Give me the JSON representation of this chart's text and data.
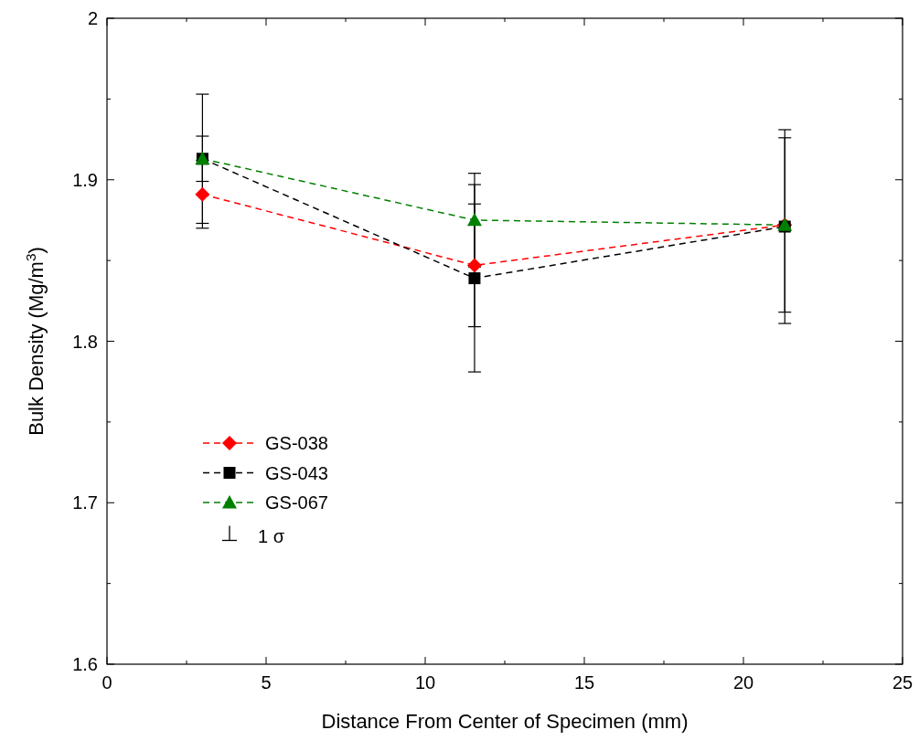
{
  "chart_data": {
    "type": "line",
    "xlabel": "Distance From Center of Specimen (mm)",
    "ylabel": "Bulk Density (Mg/m$^{3}$)",
    "x": [
      3.0,
      11.55,
      21.3
    ],
    "xlim": [
      0,
      25
    ],
    "xticks": [
      0,
      {
        "value": 2.5,
        "label": null
      },
      5,
      {
        "value": 7.5,
        "label": null
      },
      10,
      {
        "value": 12.5,
        "label": null
      },
      15,
      {
        "value": 17.5,
        "label": null
      },
      20,
      {
        "value": 22.5,
        "label": null
      },
      25
    ],
    "ylim": [
      1.6,
      2.0
    ],
    "yticks": [
      1.6,
      {
        "value": 1.65,
        "label": null
      },
      1.7,
      {
        "value": 1.75,
        "label": null
      },
      1.8,
      {
        "value": 1.85,
        "label": null
      },
      1.9,
      {
        "value": 1.95,
        "label": null
      },
      2.0
    ],
    "line_style": "dashed",
    "grid": false,
    "legend": "left",
    "series": [
      {
        "name": "GS-038",
        "color": "#ff0000",
        "marker": "diamond",
        "values": [
          1.891,
          1.847,
          1.872
        ],
        "errors": [
          0.021,
          0.038,
          0.054
        ]
      },
      {
        "name": "GS-043",
        "color": "#000000",
        "marker": "square",
        "values": [
          1.913,
          1.839,
          1.871
        ],
        "errors": [
          0.04,
          0.058,
          0.06
        ]
      },
      {
        "name": "GS-067",
        "color": "#008000",
        "marker": "triangle",
        "values": [
          1.913,
          1.875,
          1.872
        ],
        "errors": [
          0.014,
          0.029,
          null
        ]
      }
    ],
    "annotations": [
      "1 σ"
    ]
  }
}
